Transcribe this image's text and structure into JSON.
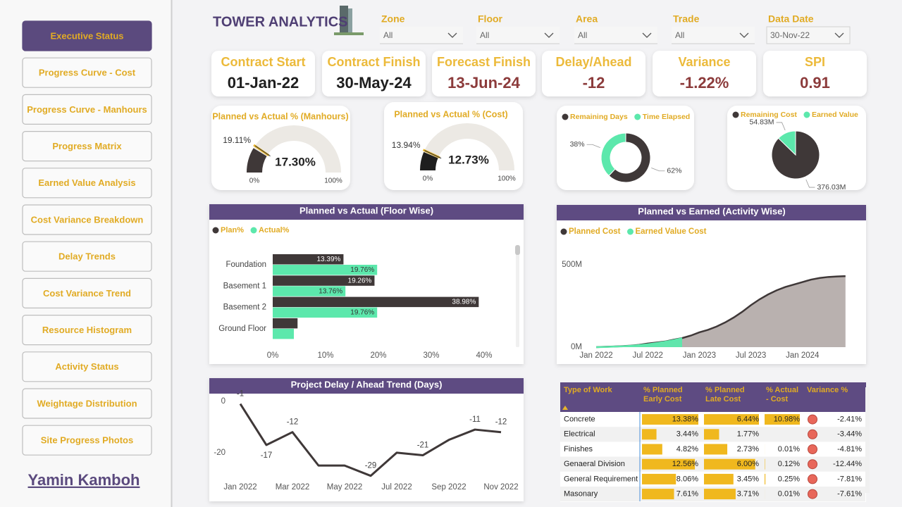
{
  "nav": {
    "items": [
      "Executive Status",
      "Progress Curve - Cost",
      "Progress Curve - Manhours",
      "Progress Matrix",
      "Earned Value Analysis",
      "Cost Variance Breakdown",
      "Delay Trends",
      "Cost Variance Trend",
      "Resource Histogram",
      "Activity Status",
      "Weightage Distribution",
      "Site Progress Photos"
    ],
    "active": 0,
    "author": "Yamin Kamboh"
  },
  "header": {
    "title": "TOWER ANALYTICS"
  },
  "filters": [
    {
      "label": "Zone",
      "value": "All"
    },
    {
      "label": "Floor",
      "value": "All"
    },
    {
      "label": "Area",
      "value": "All"
    },
    {
      "label": "Trade",
      "value": "All"
    },
    {
      "label": "Data Date",
      "value": "30-Nov-22"
    }
  ],
  "kpis": [
    {
      "label": "Contract Start",
      "value": "01-Jan-22",
      "color": "#1e1e1e"
    },
    {
      "label": "Contract Finish",
      "value": "30-May-24",
      "color": "#1e1e1e"
    },
    {
      "label": "Forecast Finish",
      "value": "13-Jun-24",
      "color": "#8c3b3b"
    },
    {
      "label": "Delay/Ahead",
      "value": -12,
      "color": "#8c3b3b"
    },
    {
      "label": "Variance",
      "value": "-1.22%",
      "color": "#8c3b3b"
    },
    {
      "label": "SPI",
      "value": 0.91,
      "color": "#8c3b3b"
    }
  ],
  "chart_data": [
    {
      "type": "gauge",
      "title": "Planned vs Actual % (Manhours)",
      "values": [
        17.3
      ],
      "value_labels": [
        "17.30%"
      ],
      "target": 19.11,
      "target_label": "19.11%",
      "ylim": [
        0,
        100
      ],
      "yticks": [
        {
          "value": 0,
          "label": "0%"
        },
        {
          "value": 100,
          "label": "100%"
        }
      ],
      "color": "#3f3838",
      "track_color": "#ece9e4",
      "target_color": "#e8b52a"
    },
    {
      "type": "gauge",
      "title": "Planned vs Actual % (Cost)",
      "values": [
        12.73
      ],
      "value_labels": [
        "12.73%"
      ],
      "target": 13.94,
      "target_label": "13.94%",
      "ylim": [
        0,
        100
      ],
      "yticks": [
        {
          "value": 0,
          "label": "0%"
        },
        {
          "value": 100,
          "label": "100%"
        }
      ],
      "color": "#1e1e1e",
      "track_color": "#ece9e4",
      "target_color": "#e8b52a"
    },
    {
      "type": "donut",
      "categories": [
        "Remaining Days",
        "Time Elapsed"
      ],
      "values": [
        62,
        38
      ],
      "value_labels": [
        "62%",
        "38%"
      ],
      "colors": [
        "#3f3838",
        "#5ce8ac"
      ]
    },
    {
      "type": "pie",
      "categories": [
        "Remaining Cost",
        "Earned Value"
      ],
      "values": [
        376.03,
        54.83
      ],
      "value_labels": [
        "376.03M",
        "54.83M"
      ],
      "colors": [
        "#3f3838",
        "#5ce8ac"
      ]
    },
    {
      "type": "bar",
      "orientation": "horizontal",
      "title": "Planned vs Actual (Floor Wise)",
      "categories": [
        "Foundation",
        "Basement 1",
        "Basement 2",
        "Ground Floor"
      ],
      "series": [
        {
          "name": "Plan%",
          "color": "#3f3838",
          "label_color": "#ffffff",
          "values": [
            13.39,
            19.26,
            38.98,
            4.7
          ],
          "value_labels": [
            "13.39%",
            "19.26%",
            "38.98%",
            null
          ]
        },
        {
          "name": "Actual%",
          "color": "#5ce8ac",
          "label_color": "#333333",
          "values": [
            19.76,
            13.76,
            19.76,
            4.0
          ],
          "value_labels": [
            "19.76%",
            "13.76%",
            "19.76%",
            null
          ]
        }
      ],
      "xlim": [
        0,
        45
      ],
      "xticks": [
        {
          "value": 0,
          "label": "0%"
        },
        {
          "value": 10,
          "label": "10%"
        },
        {
          "value": 20,
          "label": "20%"
        },
        {
          "value": 30,
          "label": "30%"
        },
        {
          "value": 40,
          "label": "40%"
        }
      ]
    },
    {
      "type": "area",
      "title": "Planned vs Earned (Activity Wise)",
      "x": [
        "2022-01",
        "2022-02",
        "2022-03",
        "2022-04",
        "2022-05",
        "2022-06",
        "2022-07",
        "2022-08",
        "2022-09",
        "2022-10",
        "2022-11",
        "2022-12",
        "2023-01",
        "2023-02",
        "2023-03",
        "2023-04",
        "2023-05",
        "2023-06",
        "2023-07",
        "2023-08",
        "2023-09",
        "2023-10",
        "2023-11",
        "2023-12",
        "2024-01",
        "2024-02",
        "2024-03",
        "2024-04",
        "2024-05",
        "2024-06"
      ],
      "series": [
        {
          "name": "Planned Cost",
          "color": "#3f3838",
          "fill": "#b9b1af",
          "values": [
            0,
            2,
            4,
            6,
            9,
            14,
            22,
            28,
            34,
            45,
            55,
            70,
            90,
            105,
            125,
            150,
            180,
            215,
            255,
            290,
            320,
            345,
            365,
            380,
            395,
            410,
            420,
            426,
            429,
            431
          ]
        },
        {
          "name": "Earned Value Cost",
          "color": "#5ce8ac",
          "fill": "#5ce8ac",
          "values": [
            0,
            1,
            3,
            5,
            8,
            12,
            17,
            24,
            32,
            42,
            54,
            null,
            null,
            null,
            null,
            null,
            null,
            null,
            null,
            null,
            null,
            null,
            null,
            null,
            null,
            null,
            null,
            null,
            null,
            null
          ]
        }
      ],
      "xlim": [
        "2021-10",
        "2024-07"
      ],
      "xticks": [
        {
          "value": "2022-01",
          "label": "Jan 2022"
        },
        {
          "value": "2022-07",
          "label": "Jul 2022"
        },
        {
          "value": "2023-01",
          "label": "Jan 2023"
        },
        {
          "value": "2023-07",
          "label": "Jul 2023"
        },
        {
          "value": "2024-01",
          "label": "Jan 2024"
        }
      ],
      "ylim": [
        0,
        600
      ],
      "yticks": [
        {
          "value": 0,
          "label": "0M"
        },
        {
          "value": 500,
          "label": "500M"
        }
      ]
    },
    {
      "type": "line",
      "title": "Project Delay / Ahead Trend (Days)",
      "categories": [
        "Jan 2022",
        null,
        "Mar 2022",
        null,
        "May 2022",
        null,
        "Jul 2022",
        null,
        "Sep 2022",
        null,
        "Nov 2022"
      ],
      "values": [
        -1,
        -17,
        -12,
        -25,
        -25,
        -29,
        -20,
        -21,
        -15,
        -11,
        -12
      ],
      "value_labels": [
        "-1",
        "-17",
        "-12",
        null,
        null,
        "-29",
        null,
        "-21",
        null,
        "-11",
        "-12"
      ],
      "color": "#3f3838",
      "ylim": [
        -31,
        3
      ],
      "yticks": [
        0,
        -20
      ]
    }
  ],
  "table": {
    "columns": [
      [
        "Type of Work"
      ],
      [
        "% Planned",
        "Early Cost"
      ],
      [
        "% Planned",
        "Late Cost"
      ],
      [
        "% Actual",
        "- Cost"
      ],
      [
        "Variance %"
      ]
    ],
    "rows": [
      [
        "Concrete",
        "13.38%",
        "6.44%",
        "10.98%",
        "-2.41%"
      ],
      [
        "Electrical",
        "3.44%",
        "1.77%",
        null,
        "-3.44%"
      ],
      [
        "Finishes",
        "4.82%",
        "2.73%",
        "0.01%",
        "-4.81%"
      ],
      [
        "Genaeral Division",
        "12.56%",
        "6.00%",
        "0.12%",
        "-12.44%"
      ],
      [
        "General Requirement",
        "8.06%",
        "3.45%",
        "0.25%",
        "-7.81%"
      ],
      [
        "Masonary",
        "7.61%",
        "3.71%",
        "0.01%",
        "-7.61%"
      ]
    ]
  }
}
